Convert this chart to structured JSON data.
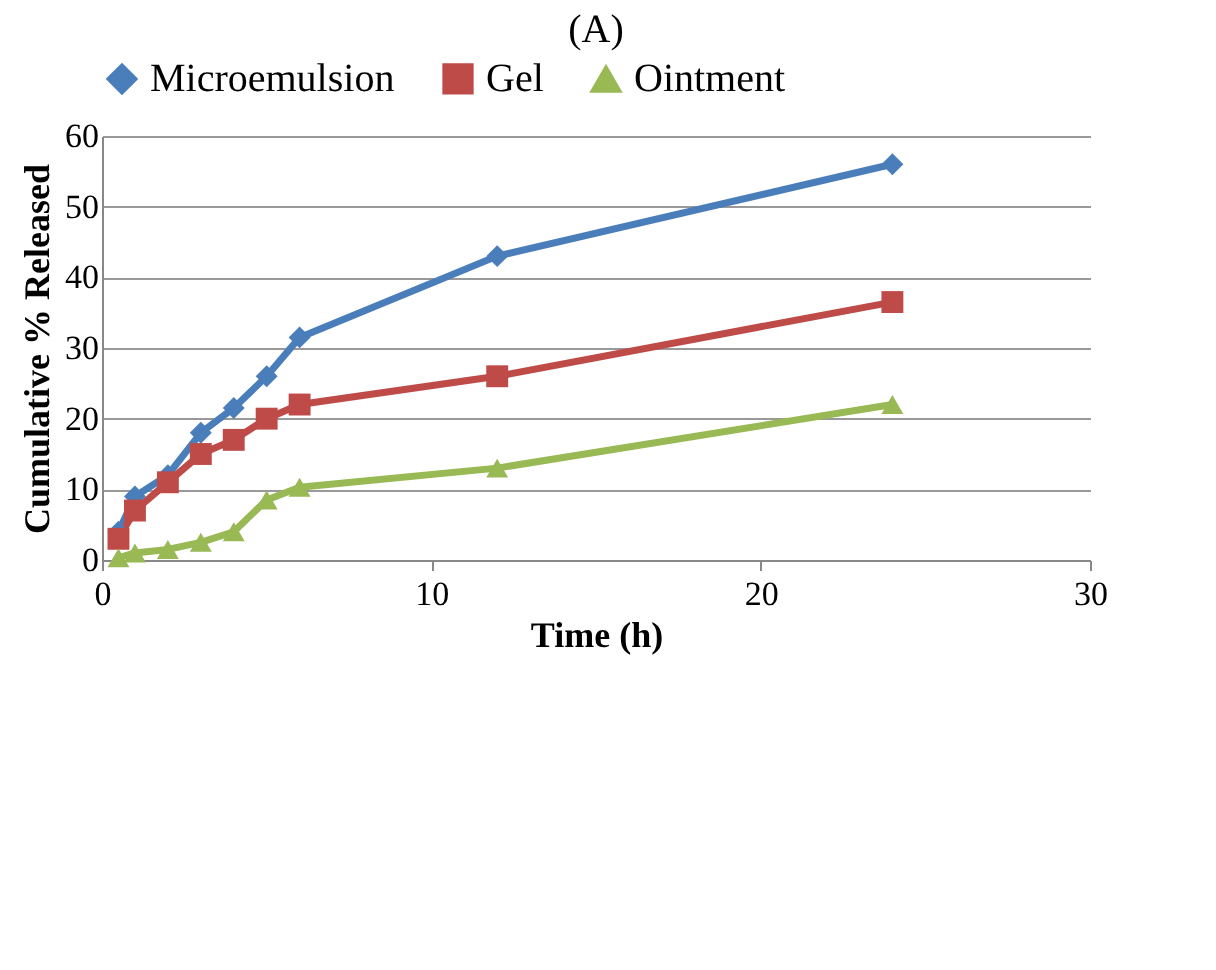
{
  "chart_data": {
    "type": "line",
    "title": "(A)",
    "xlabel": "Time  (h)",
    "ylabel": "Cumulative % Released",
    "x": [
      0.5,
      1,
      2,
      3,
      4,
      5,
      6,
      12,
      24
    ],
    "series": [
      {
        "name": "Microemulsion",
        "color": "#4a7ebb",
        "marker": "diamond",
        "values": [
          4,
          9,
          12,
          18,
          21.5,
          26,
          31.5,
          43,
          56
        ]
      },
      {
        "name": "Gel",
        "color": "#be4b48",
        "marker": "square",
        "values": [
          3,
          7,
          11,
          15,
          17,
          20,
          22,
          26,
          36.5
        ]
      },
      {
        "name": "Ointment",
        "color": "#98b954",
        "marker": "triangle",
        "values": [
          0.3,
          1,
          1.5,
          2.5,
          4,
          8.5,
          10.3,
          13,
          22
        ]
      }
    ],
    "xlim": [
      0,
      30
    ],
    "xticks": [
      0,
      10,
      20,
      30
    ],
    "ylim": [
      0,
      60
    ],
    "yticks": [
      0,
      10,
      20,
      30,
      40,
      50,
      60
    ],
    "grid": "y",
    "legend": "top",
    "line_style": "solid"
  }
}
